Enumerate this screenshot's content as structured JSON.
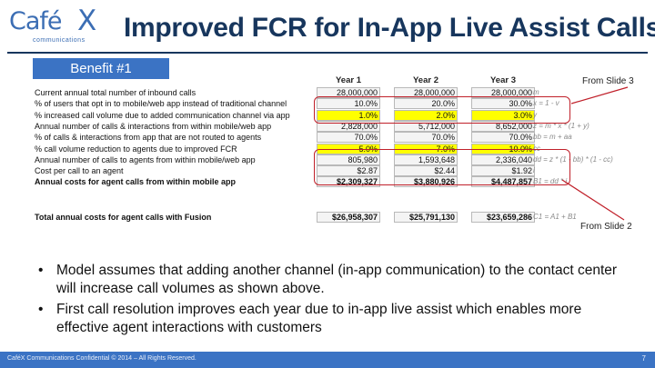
{
  "logo": {
    "word": "Café",
    "mark": "X",
    "sub": "communications"
  },
  "title": "Improved FCR for In-App Live Assist Calls",
  "benefit": "Benefit #1",
  "years": [
    "Year 1",
    "Year 2",
    "Year 3"
  ],
  "rows": [
    {
      "label": "Current annual total number of inbound calls",
      "values": [
        "28,000,000",
        "28,000,000",
        "28,000,000"
      ],
      "formula": "m",
      "highlight": false,
      "bold": false
    },
    {
      "label": "% of users that opt in to mobile/web app instead of traditional channel",
      "values": [
        "10.0%",
        "20.0%",
        "30.0%"
      ],
      "formula": "x = 1 - v",
      "highlight": false,
      "bold": false
    },
    {
      "label": "% increased call volume due to added communication channel via app",
      "values": [
        "1.0%",
        "2.0%",
        "3.0%"
      ],
      "formula": "y",
      "highlight": true,
      "bold": false
    },
    {
      "label": "Annual number of calls & interactions from within mobile/web app",
      "values": [
        "2,828,000",
        "5,712,000",
        "8,652,000"
      ],
      "formula": "z = m * x * (1 + y)",
      "highlight": false,
      "bold": false
    },
    {
      "label": "% of calls & interactions from app that are not routed to agents",
      "values": [
        "70.0%",
        "70.0%",
        "70.0%"
      ],
      "formula": "bb = m + aa",
      "highlight": false,
      "bold": false
    },
    {
      "label": "% call volume reduction to agents due to improved FCR",
      "values": [
        "5.0%",
        "7.0%",
        "10.0%"
      ],
      "formula": "cc",
      "highlight": true,
      "bold": false
    },
    {
      "label": "Annual number of calls to agents from within mobile/web app",
      "values": [
        "805,980",
        "1,593,648",
        "2,336,040"
      ],
      "formula": "dd = z * (1 - bb) * (1 - cc)",
      "highlight": false,
      "bold": false
    },
    {
      "label": "Cost per call to an agent",
      "values": [
        "$2.87",
        "$2.44",
        "$1.92"
      ],
      "formula": "i",
      "highlight": false,
      "bold": false
    },
    {
      "label": "Annual costs for agent calls from within mobile app",
      "values": [
        "$2,309,327",
        "$3,880,926",
        "$4,487,857"
      ],
      "formula": "B1 = dd * i",
      "highlight": false,
      "bold": true
    }
  ],
  "total": {
    "label": "Total annual costs for agent calls with Fusion",
    "values": [
      "$26,958,307",
      "$25,791,130",
      "$23,659,286"
    ],
    "formula": "C1 = A1 + B1"
  },
  "notes": {
    "slide3": "From Slide 3",
    "slide2": "From Slide 2"
  },
  "bullets": [
    "Model assumes that adding another channel (in-app communication) to the contact center will increase call volumes as shown above.",
    "First call resolution improves each year due to in-app live assist which enables more effective agent interactions with customers"
  ],
  "footer": {
    "text": "CaféX Communications Confidential © 2014 – All Rights Reserved.",
    "page": "7"
  },
  "colors": {
    "accent": "#3b73c4",
    "title": "#17365d",
    "highlight": "#ffff00",
    "marker": "#c0202a"
  }
}
